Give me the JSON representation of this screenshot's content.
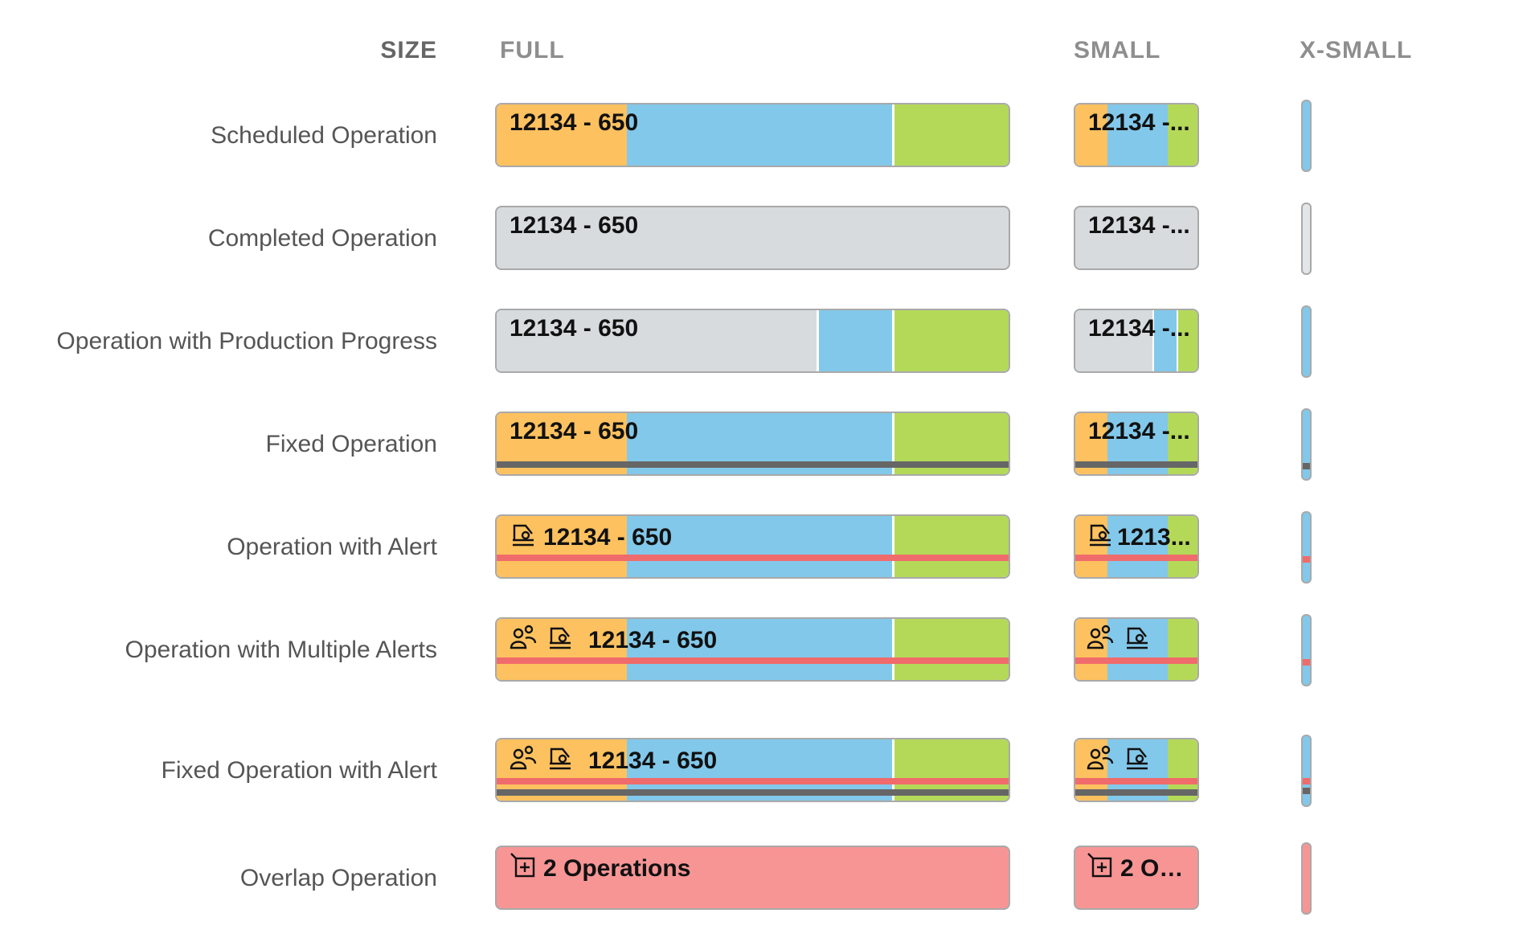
{
  "headers": {
    "size": "SIZE",
    "full": "FULL",
    "small": "SMALL",
    "xsmall": "X-SMALL"
  },
  "colors": {
    "setup": "#fdc15f",
    "run": "#82c8ea",
    "teardown": "#b4d959",
    "completed": "#d7dbde",
    "fixed_line": "#666666",
    "alert_line": "#f06b6b",
    "overlap": "#f79595"
  },
  "rows": [
    {
      "label": "Scheduled Operation",
      "full_text": "12134 - 650",
      "small_text": "12134 -..."
    },
    {
      "label": "Completed Operation",
      "full_text": "12134 - 650",
      "small_text": "12134 -..."
    },
    {
      "label": "Operation with Production Progress",
      "full_text": "12134 - 650",
      "small_text": "12134 -..."
    },
    {
      "label": "Fixed Operation",
      "full_text": "12134 - 650",
      "small_text": "12134 -..."
    },
    {
      "label": "Operation with Alert",
      "full_text": "12134 - 650",
      "small_text": "1213...",
      "icons": [
        "machine-alert-icon"
      ]
    },
    {
      "label": "Operation with Multiple Alerts",
      "full_text": "12134 - 650",
      "small_text": "",
      "icons": [
        "people-alert-icon",
        "machine-alert-icon"
      ]
    },
    {
      "label": "Fixed Operation with Alert",
      "full_text": "12134 - 650",
      "small_text": "",
      "icons": [
        "people-alert-icon",
        "machine-alert-icon"
      ]
    },
    {
      "label": "Overlap Operation",
      "full_text": "2 Operations",
      "small_text": "2 Op...",
      "icons": [
        "expand-icon"
      ]
    }
  ]
}
